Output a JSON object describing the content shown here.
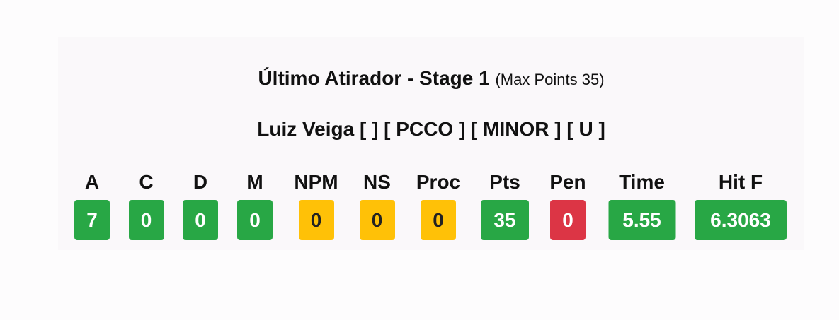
{
  "header": {
    "title": "Último Atirador - Stage 1",
    "subtitle": "(Max Points 35)"
  },
  "shooter": {
    "line": "Luiz Veiga [ ] [ PCCO ] [ MINOR ] [ U ]"
  },
  "colors": {
    "green": "#28a745",
    "yellow": "#ffc107",
    "red": "#dc3545"
  },
  "score": [
    {
      "label": "A",
      "value": "7",
      "status": "green"
    },
    {
      "label": "C",
      "value": "0",
      "status": "green"
    },
    {
      "label": "D",
      "value": "0",
      "status": "green"
    },
    {
      "label": "M",
      "value": "0",
      "status": "green"
    },
    {
      "label": "NPM",
      "value": "0",
      "status": "yellow"
    },
    {
      "label": "NS",
      "value": "0",
      "status": "yellow"
    },
    {
      "label": "Proc",
      "value": "0",
      "status": "yellow"
    },
    {
      "label": "Pts",
      "value": "35",
      "status": "green"
    },
    {
      "label": "Pen",
      "value": "0",
      "status": "red"
    },
    {
      "label": "Time",
      "value": "5.55",
      "status": "green"
    },
    {
      "label": "Hit F",
      "value": "6.3063",
      "status": "green"
    }
  ]
}
